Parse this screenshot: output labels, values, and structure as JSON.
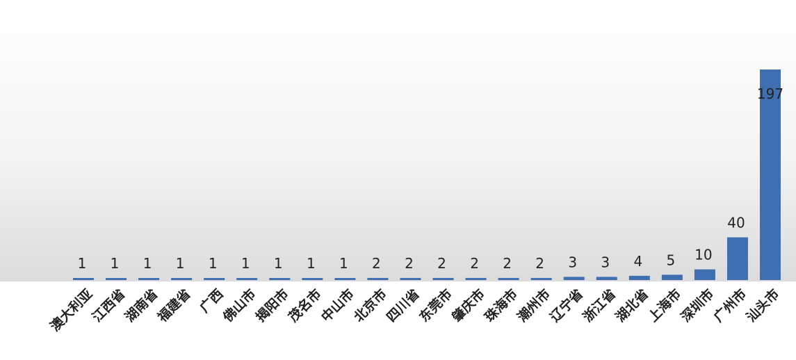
{
  "chart_data": {
    "type": "bar",
    "categories": [
      "澳大利亚",
      "江西省",
      "湖南省",
      "福建省",
      "广西",
      "佛山市",
      "揭阳市",
      "茂名市",
      "中山市",
      "北京市",
      "四川省",
      "东莞市",
      "肇庆市",
      "珠海市",
      "潮州市",
      "辽宁省",
      "浙江省",
      "湖北省",
      "上海市",
      "深圳市",
      "广州市",
      "汕头市"
    ],
    "values": [
      1,
      1,
      1,
      1,
      1,
      1,
      1,
      1,
      1,
      2,
      2,
      2,
      2,
      2,
      2,
      3,
      3,
      4,
      5,
      10,
      40,
      197
    ],
    "color": "#3f6fb0"
  }
}
